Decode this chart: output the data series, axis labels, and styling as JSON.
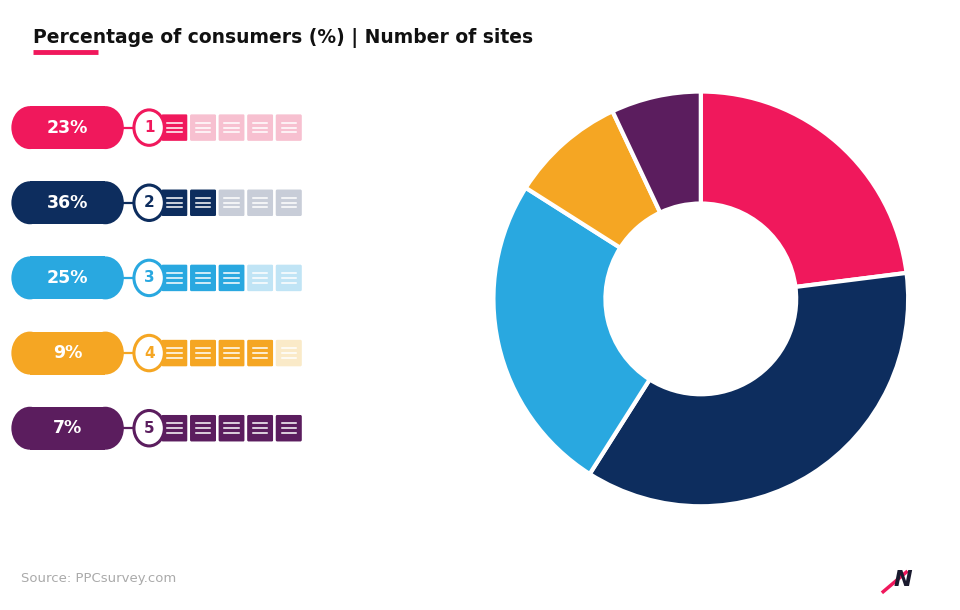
{
  "title": "Percentage of consumers (%) | Number of sites",
  "title_color": "#111111",
  "background_color": "#ffffff",
  "footer_bg": "#eeeef5",
  "footer_text": "Source: PPCsurvey.com",
  "rows": [
    {
      "pct": "23%",
      "num": "1",
      "filled": 1,
      "total": 5,
      "pill_color": "#F0185C",
      "circle_color": "#F0185C",
      "icon_color": "#F0185C",
      "icon_faded": "#F7C0D0",
      "value": 23
    },
    {
      "pct": "36%",
      "num": "2",
      "filled": 2,
      "total": 5,
      "pill_color": "#0D2D5E",
      "circle_color": "#0D2D5E",
      "icon_color": "#0D2D5E",
      "icon_faded": "#C8CDD8",
      "value": 36
    },
    {
      "pct": "25%",
      "num": "3",
      "filled": 3,
      "total": 5,
      "pill_color": "#29A8E0",
      "circle_color": "#29A8E0",
      "icon_color": "#29A8E0",
      "icon_faded": "#C0E4F5",
      "value": 25
    },
    {
      "pct": "9%",
      "num": "4",
      "filled": 4,
      "total": 5,
      "pill_color": "#F5A623",
      "circle_color": "#F5A623",
      "icon_color": "#F5A623",
      "icon_faded": "#FAEAC8",
      "value": 9
    },
    {
      "pct": "7%",
      "num": "5",
      "filled": 5,
      "total": 5,
      "pill_color": "#5B1D5E",
      "circle_color": "#5B1D5E",
      "icon_color": "#5B1D5E",
      "icon_faded": "#5B1D5E",
      "value": 7
    }
  ],
  "donut_values": [
    23,
    36,
    25,
    9,
    7
  ],
  "donut_colors": [
    "#F0185C",
    "#0D2D5E",
    "#29A8E0",
    "#F5A623",
    "#5B1D5E"
  ],
  "donut_startangle": 90
}
